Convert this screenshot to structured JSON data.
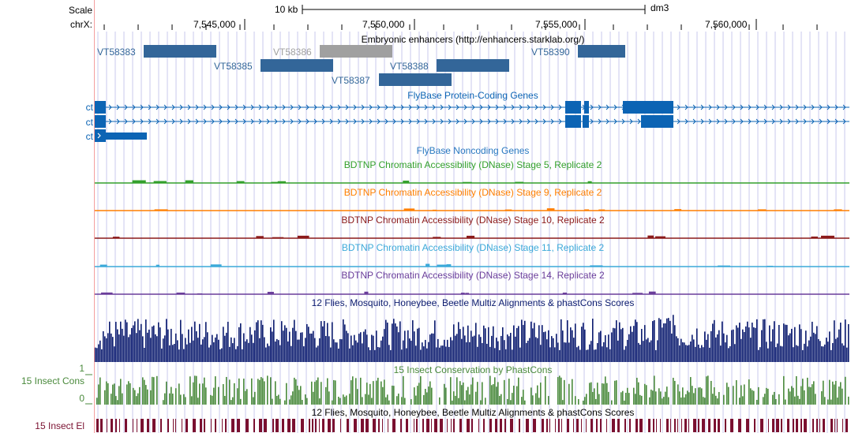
{
  "ruler": {
    "scale_label": "Scale",
    "chrom_label": "chrX:",
    "scale_bar_text": "10 kb",
    "assembly": "dm3",
    "ticks": [
      "7,545,000",
      "7,550,000",
      "7,555,000",
      "7,560,000"
    ]
  },
  "tracks": {
    "enhancers": {
      "title": "Embryonic enhancers (http://enhancers.starklab.org/)",
      "features": [
        {
          "name": "VT58383",
          "color": "#336699"
        },
        {
          "name": "VT58386",
          "color": "#a0a0a0"
        },
        {
          "name": "VT58385",
          "color": "#336699"
        },
        {
          "name": "VT58388",
          "color": "#336699"
        },
        {
          "name": "VT58387",
          "color": "#336699"
        },
        {
          "name": "VT58390",
          "color": "#336699"
        }
      ]
    },
    "genes": {
      "title": "FlyBase Protein-Coding Genes",
      "color": "#0c64b4",
      "transcripts": [
        "ct",
        "ct",
        "ct"
      ]
    },
    "noncoding": {
      "title": "FlyBase Noncoding Genes",
      "color": "#2878c0"
    },
    "dnase": [
      {
        "title": "BDTNP Chromatin Accessibility (DNase) Stage 5, Replicate 2",
        "color": "#33a02c"
      },
      {
        "title": "BDTNP Chromatin Accessibility (DNase) Stage 9, Replicate 2",
        "color": "#ff7f00"
      },
      {
        "title": "BDTNP Chromatin Accessibility (DNase) Stage 10, Replicate 2",
        "color": "#8b1a1a"
      },
      {
        "title": "BDTNP Chromatin Accessibility (DNase) Stage 11, Replicate 2",
        "color": "#3ba9d9"
      },
      {
        "title": "BDTNP Chromatin Accessibility (DNase) Stage 14, Replicate 2",
        "color": "#6a3d9a"
      }
    ],
    "multiz": {
      "title": "12 Flies, Mosquito, Honeybee, Beetle Multiz Alignments & phastCons Scores",
      "color": "#0a1a6e"
    },
    "phastcons": {
      "title": "15 Insect Conservation by PhastCons",
      "side_label": "15 Insect Cons",
      "y_max": "1",
      "y_min": "0",
      "color": "#4a8a3c"
    },
    "elements": {
      "title": "12 Flies, Mosquito, Honeybee, Beetle Multiz Alignments & phastCons Scores",
      "side_label": "15 Insect El",
      "color": "#7a1030"
    }
  },
  "colors": {
    "gridline": "#c8c8ee",
    "left_margin_line": "#f4a0a0",
    "label_blue": "#336699"
  }
}
